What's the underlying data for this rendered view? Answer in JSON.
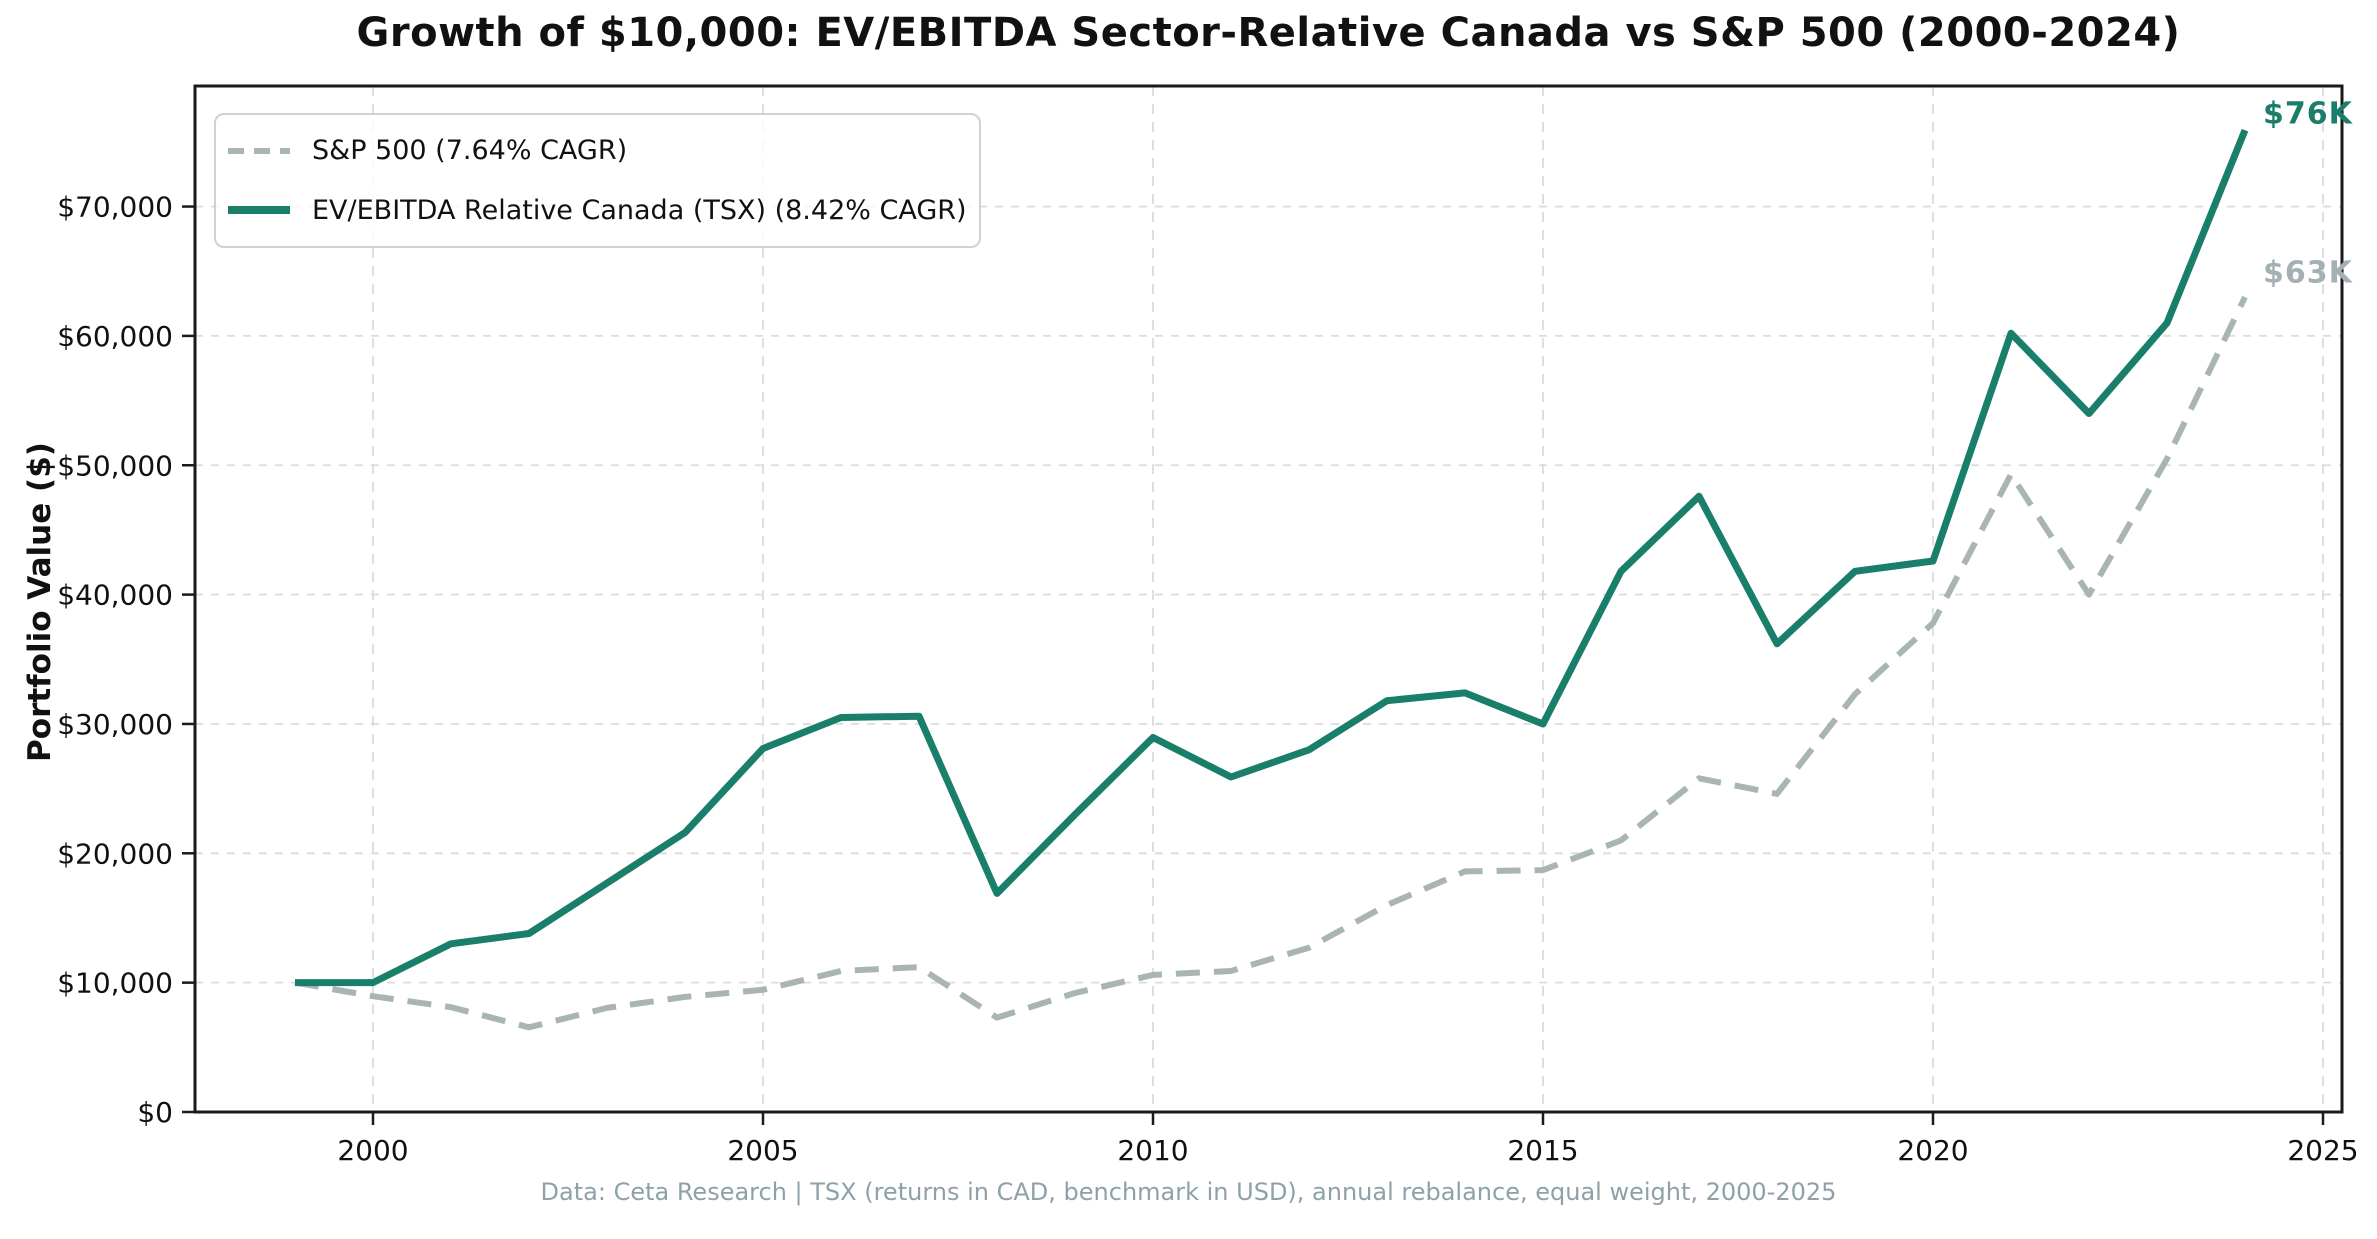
{
  "chart": {
    "title": "Growth of $10,000: EV/EBITDA Sector-Relative Canada vs S&P 500 (2000-2024)",
    "y_axis": {
      "title": "Portfolio Value ($)"
    },
    "legend": [
      {
        "label": "S&P 500 (7.64% CAGR)",
        "series": "sp500"
      },
      {
        "label": "EV/EBITDA Relative Canada (TSX) (8.42% CAGR)",
        "series": "canada"
      }
    ],
    "end_labels": {
      "canada": "$76K",
      "sp500": "$63K"
    },
    "footer": "Data: Ceta Research | TSX (returns in CAD, benchmark in USD), annual rebalance, equal weight, 2000-2025"
  },
  "chart_data": {
    "type": "line",
    "x": [
      1999,
      2000,
      2001,
      2002,
      2003,
      2004,
      2005,
      2006,
      2007,
      2008,
      2009,
      2010,
      2011,
      2012,
      2013,
      2014,
      2015,
      2016,
      2017,
      2018,
      2019,
      2020,
      2021,
      2022,
      2023,
      2024
    ],
    "series": [
      {
        "key": "sp500",
        "name": "S&P 500 (7.64% CAGR)",
        "color": "#a9b5b5",
        "style": "dashed",
        "end_label_color": "#a4b0b3",
        "values": [
          10000,
          8950,
          8100,
          6550,
          8050,
          8900,
          9450,
          10900,
          11200,
          7300,
          9200,
          10600,
          10900,
          12700,
          16000,
          18600,
          18700,
          21000,
          25800,
          24600,
          32300,
          37800,
          49300,
          40000,
          50500,
          63000
        ]
      },
      {
        "key": "canada",
        "name": "EV/EBITDA Relative Canada (TSX) (8.42% CAGR)",
        "color": "#1a7f6a",
        "style": "solid",
        "end_label_color": "#1a7f6a",
        "values": [
          10000,
          10000,
          13000,
          13800,
          17700,
          21600,
          28100,
          30500,
          30600,
          16900,
          23000,
          28950,
          25900,
          28000,
          31800,
          32400,
          30000,
          41800,
          47600,
          36200,
          41800,
          42600,
          60200,
          54000,
          61000,
          75900
        ]
      }
    ],
    "x_ticks": {
      "values": [
        2000,
        2005,
        2010,
        2015,
        2020,
        2025
      ],
      "labels": [
        "2000",
        "2005",
        "2010",
        "2015",
        "2020",
        "2025"
      ]
    },
    "y_ticks": {
      "values": [
        0,
        10000,
        20000,
        30000,
        40000,
        50000,
        60000,
        70000
      ],
      "labels": [
        "$0",
        "$10,000",
        "$20,000",
        "$30,000",
        "$40,000",
        "$50,000",
        "$60,000",
        "$70,000"
      ]
    },
    "ylim": [
      0,
      79300
    ],
    "xlim": [
      1997.7,
      2025.3
    ],
    "grid": true,
    "legend_position": "upper left",
    "title": "Growth of $10,000: EV/EBITDA Sector-Relative Canada vs S&P 500 (2000-2024)",
    "xlabel": "",
    "ylabel": "Portfolio Value ($)",
    "colors": {
      "grid": "#dbdddd",
      "spine": "#1a1a1a",
      "tick_text": "#111111",
      "footer_text": "#8fa1a8"
    }
  }
}
